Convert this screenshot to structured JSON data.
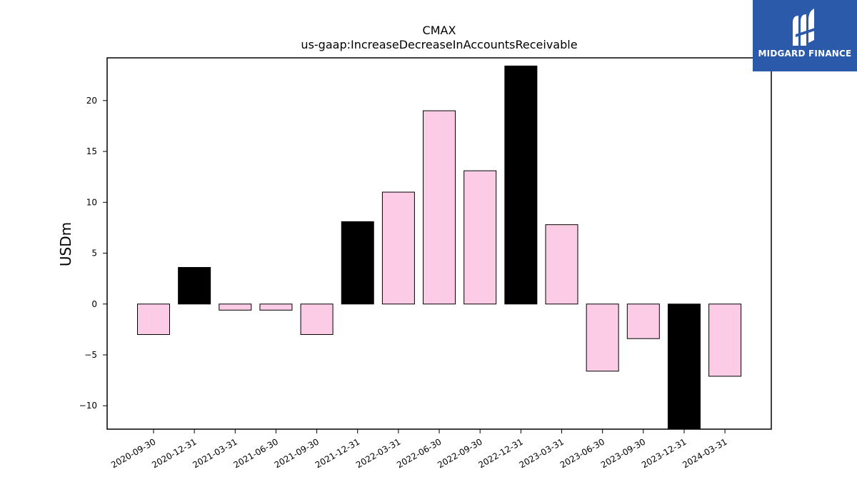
{
  "brand": {
    "name": "MIDGARD FINANCE",
    "bg_color": "#2b5aab",
    "icon": "midgard-m-logo-icon"
  },
  "colors": {
    "bar_default": "#fccbe6",
    "bar_highlight": "#000000",
    "bar_edge": "#000000"
  },
  "chart_data": {
    "type": "bar",
    "title": "CMAX",
    "subtitle": "us-gaap:IncreaseDecreaseInAccountsReceivable",
    "xlabel": "",
    "ylabel": "USDm",
    "ylim": [
      -12.3,
      24.2
    ],
    "yticks": [
      -10,
      -5,
      0,
      5,
      10,
      15,
      20
    ],
    "ytick_labels": [
      "−10",
      "−5",
      "0",
      "5",
      "10",
      "15",
      "20"
    ],
    "grid": false,
    "categories": [
      "2020-09-30",
      "2020-12-31",
      "2021-03-31",
      "2021-06-30",
      "2021-09-30",
      "2021-12-31",
      "2022-03-31",
      "2022-06-30",
      "2022-09-30",
      "2022-12-31",
      "2023-03-31",
      "2023-06-30",
      "2023-09-30",
      "2023-12-31",
      "2024-03-31"
    ],
    "values": [
      -3.0,
      3.6,
      -0.6,
      -0.6,
      -3.0,
      8.1,
      11.0,
      19.0,
      13.1,
      23.4,
      7.8,
      -6.6,
      -3.4,
      -12.3,
      -7.1
    ],
    "highlight": [
      false,
      true,
      false,
      false,
      false,
      true,
      false,
      false,
      false,
      true,
      false,
      false,
      false,
      true,
      false
    ]
  }
}
